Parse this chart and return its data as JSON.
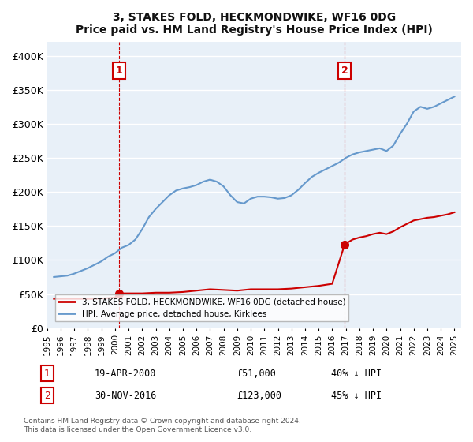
{
  "title": "3, STAKES FOLD, HECKMONDWIKE, WF16 0DG",
  "subtitle": "Price paid vs. HM Land Registry's House Price Index (HPI)",
  "yticks": [
    0,
    50000,
    100000,
    150000,
    200000,
    250000,
    300000,
    350000,
    400000
  ],
  "ylim": [
    0,
    420000
  ],
  "xlim_start": 1995.0,
  "xlim_end": 2025.5,
  "background_color": "#ffffff",
  "plot_bg_color": "#e8f0f8",
  "grid_color": "#ffffff",
  "transaction1": {
    "date_x": 2000.3,
    "price": 51000,
    "label": "1"
  },
  "transaction2": {
    "date_x": 2016.92,
    "price": 123000,
    "label": "2"
  },
  "red_line_color": "#cc0000",
  "blue_line_color": "#6699cc",
  "dashed_line_color": "#cc0000",
  "dashed_line_color2": "#cc0000",
  "legend_label_red": "3, STAKES FOLD, HECKMONDWIKE, WF16 0DG (detached house)",
  "legend_label_blue": "HPI: Average price, detached house, Kirklees",
  "annotation1_date": "19-APR-2000",
  "annotation1_price": "£51,000",
  "annotation1_hpi": "40% ↓ HPI",
  "annotation2_date": "30-NOV-2016",
  "annotation2_price": "£123,000",
  "annotation2_hpi": "45% ↓ HPI",
  "footer": "Contains HM Land Registry data © Crown copyright and database right 2024.\nThis data is licensed under the Open Government Licence v3.0.",
  "hpi_data_x": [
    1995.5,
    1996.0,
    1996.5,
    1997.0,
    1997.5,
    1998.0,
    1998.5,
    1999.0,
    1999.5,
    2000.0,
    2000.5,
    2001.0,
    2001.5,
    2002.0,
    2002.5,
    2003.0,
    2003.5,
    2004.0,
    2004.5,
    2005.0,
    2005.5,
    2006.0,
    2006.5,
    2007.0,
    2007.5,
    2008.0,
    2008.5,
    2009.0,
    2009.5,
    2010.0,
    2010.5,
    2011.0,
    2011.5,
    2012.0,
    2012.5,
    2013.0,
    2013.5,
    2014.0,
    2014.5,
    2015.0,
    2015.5,
    2016.0,
    2016.5,
    2017.0,
    2017.5,
    2018.0,
    2018.5,
    2019.0,
    2019.5,
    2020.0,
    2020.5,
    2021.0,
    2021.5,
    2022.0,
    2022.5,
    2023.0,
    2023.5,
    2024.0,
    2024.5,
    2025.0
  ],
  "hpi_data_y": [
    75000,
    76000,
    77000,
    80000,
    84000,
    88000,
    93000,
    98000,
    105000,
    110000,
    118000,
    122000,
    130000,
    145000,
    163000,
    175000,
    185000,
    195000,
    202000,
    205000,
    207000,
    210000,
    215000,
    218000,
    215000,
    208000,
    195000,
    185000,
    183000,
    190000,
    193000,
    193000,
    192000,
    190000,
    191000,
    195000,
    203000,
    213000,
    222000,
    228000,
    233000,
    238000,
    243000,
    250000,
    255000,
    258000,
    260000,
    262000,
    264000,
    260000,
    268000,
    285000,
    300000,
    318000,
    325000,
    322000,
    325000,
    330000,
    335000,
    340000
  ],
  "red_data_x": [
    1995.5,
    1996.0,
    1996.5,
    1997.0,
    1997.5,
    1998.0,
    1998.5,
    1999.0,
    1999.5,
    2000.0,
    2000.3,
    2000.5,
    2001.0,
    2002.0,
    2003.0,
    2004.0,
    2005.0,
    2006.0,
    2007.0,
    2008.0,
    2009.0,
    2010.0,
    2011.0,
    2012.0,
    2013.0,
    2014.0,
    2015.0,
    2016.0,
    2016.92,
    2017.5,
    2018.0,
    2018.5,
    2019.0,
    2019.5,
    2020.0,
    2020.5,
    2021.0,
    2021.5,
    2022.0,
    2022.5,
    2023.0,
    2023.5,
    2024.0,
    2024.5,
    2025.0
  ],
  "red_data_y": [
    43000,
    43000,
    43000,
    43000,
    43000,
    43000,
    43000,
    43500,
    44000,
    45000,
    51000,
    51000,
    51000,
    51000,
    52000,
    52000,
    53000,
    55000,
    57000,
    56000,
    55000,
    57000,
    57000,
    57000,
    58000,
    60000,
    62000,
    65000,
    123000,
    130000,
    133000,
    135000,
    138000,
    140000,
    138000,
    142000,
    148000,
    153000,
    158000,
    160000,
    162000,
    163000,
    165000,
    167000,
    170000
  ]
}
